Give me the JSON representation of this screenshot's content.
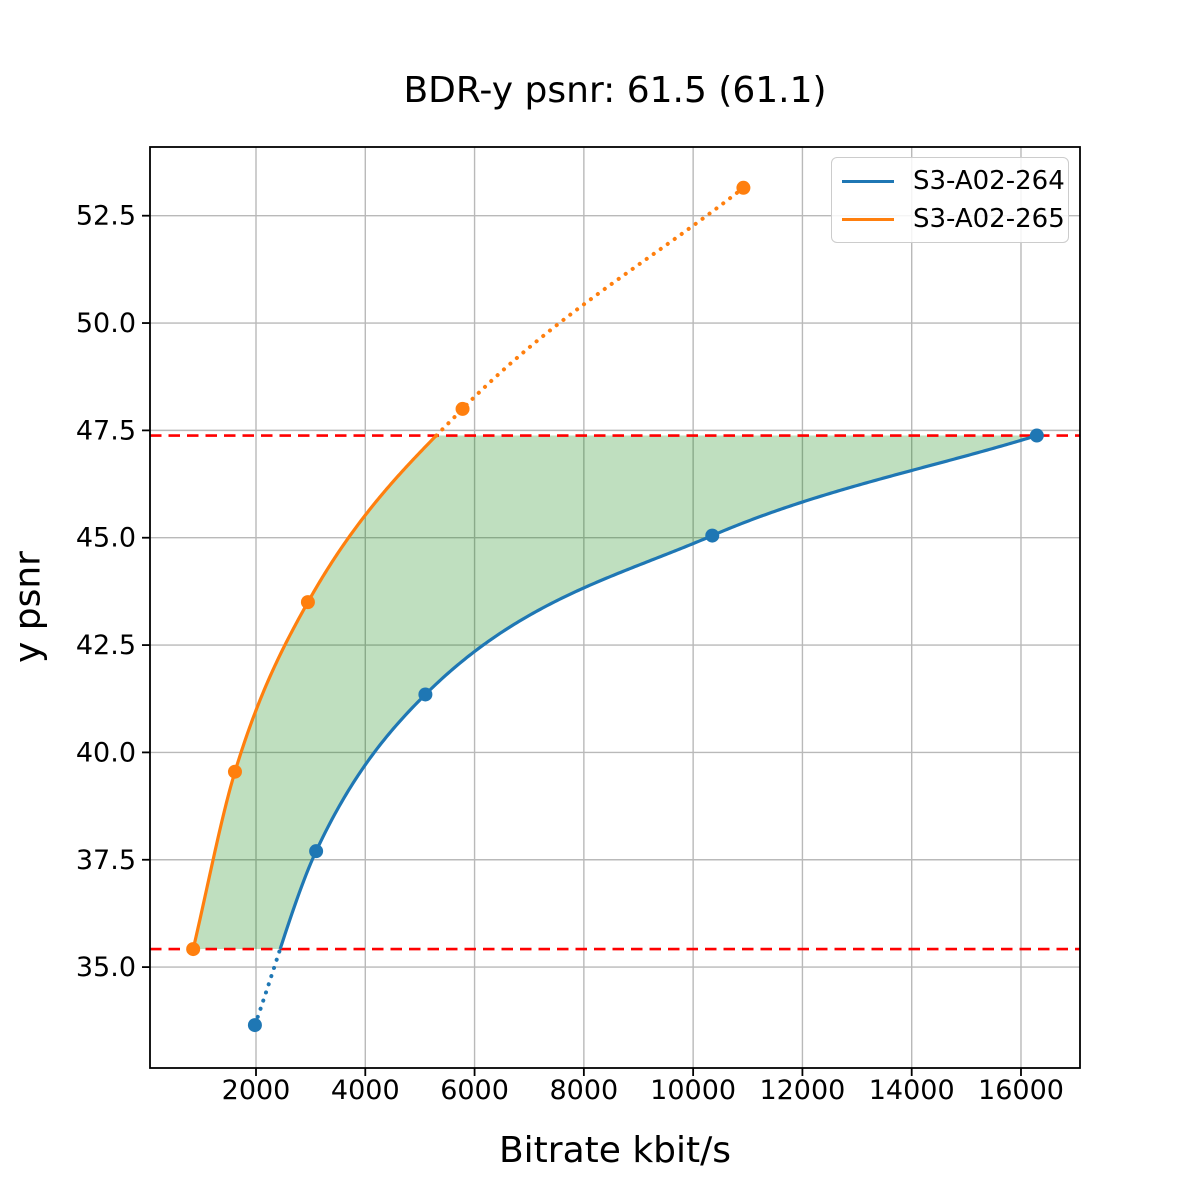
{
  "title": "BDR-y psnr: 61.5 (61.1)",
  "axes": {
    "xlabel": "Bitrate kbit/s",
    "ylabel": "y psnr"
  },
  "legend": {
    "entries": [
      {
        "label": "S3-A02-264",
        "color": "#1f77b4"
      },
      {
        "label": "S3-A02-265",
        "color": "#ff7f0e"
      }
    ]
  },
  "chart_data": {
    "type": "line",
    "title": "BDR-y psnr: 61.5 (61.1)",
    "xlabel": "Bitrate kbit/s",
    "ylabel": "y psnr",
    "xlim": [
      60,
      17080
    ],
    "ylim": [
      32.65,
      54.1
    ],
    "grid": true,
    "grid_color": "#b9b9b9",
    "legend_position": "upper right",
    "x_ticks": [
      {
        "value": 2000,
        "label": "2000"
      },
      {
        "value": 4000,
        "label": "4000"
      },
      {
        "value": 6000,
        "label": "6000"
      },
      {
        "value": 8000,
        "label": "8000"
      },
      {
        "value": 10000,
        "label": "10000"
      },
      {
        "value": 12000,
        "label": "12000"
      },
      {
        "value": 14000,
        "label": "14000"
      },
      {
        "value": 16000,
        "label": "16000"
      }
    ],
    "y_ticks": [
      {
        "value": 35.0,
        "label": "35.0"
      },
      {
        "value": 37.5,
        "label": "37.5"
      },
      {
        "value": 40.0,
        "label": "40.0"
      },
      {
        "value": 42.5,
        "label": "42.5"
      },
      {
        "value": 45.0,
        "label": "45.0"
      },
      {
        "value": 47.5,
        "label": "47.5"
      },
      {
        "value": 50.0,
        "label": "50.0"
      },
      {
        "value": 52.5,
        "label": "52.5"
      }
    ],
    "series": [
      {
        "name": "S3-A02-264",
        "color": "#1f77b4",
        "points": [
          [
            1980,
            33.65
          ],
          [
            3100,
            37.7
          ],
          [
            5100,
            41.35
          ],
          [
            10350,
            45.05
          ],
          [
            16290,
            47.38
          ]
        ],
        "style_note": "dotted below overlap band, solid inside band, circle markers"
      },
      {
        "name": "S3-A02-265",
        "color": "#ff7f0e",
        "points": [
          [
            850,
            35.42
          ],
          [
            1615,
            39.55
          ],
          [
            2950,
            43.5
          ],
          [
            5780,
            48.0
          ],
          [
            10920,
            53.15
          ]
        ],
        "style_note": "solid inside overlap band, dotted above band, circle markers"
      }
    ],
    "overlap_band": {
      "y_low": 35.42,
      "y_high": 47.38,
      "boundary_color": "#ff0000",
      "boundary_style": "dashed",
      "fill_color": "#008000",
      "fill_opacity": 0.25
    }
  }
}
